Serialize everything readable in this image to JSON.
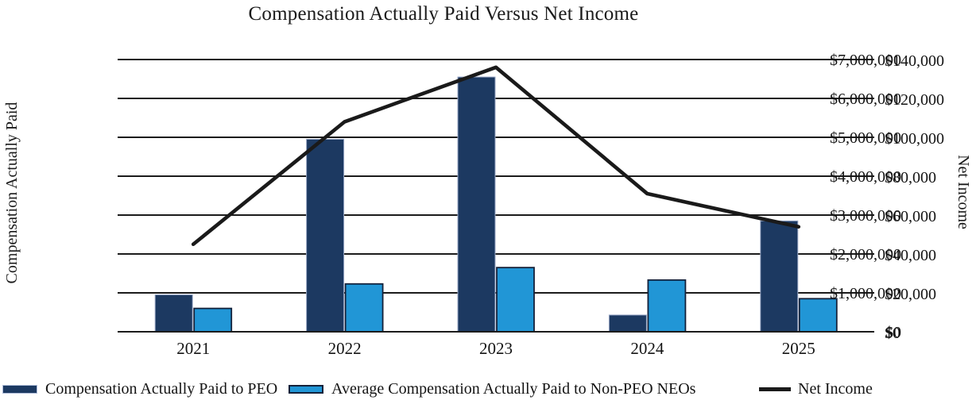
{
  "title": "Compensation Actually Paid Versus Net Income",
  "left_axis": {
    "title": "Compensation Actually Paid",
    "ticks": [
      "$7,000,000",
      "$6,000,000",
      "$5,000,000",
      "$4,000,000",
      "$3,000,000",
      "$2,000,000",
      "$1,000,000",
      "$0"
    ]
  },
  "right_axis": {
    "title": "Net Income",
    "ticks": [
      "$140,000",
      "$120,000",
      "$100,000",
      "$80,000",
      "$60,000",
      "$40,000",
      "$20,000",
      "$0"
    ]
  },
  "x_axis": {
    "categories": [
      "2021",
      "2022",
      "2023",
      "2024",
      "2025"
    ]
  },
  "legend": {
    "items": [
      {
        "label": "Compensation Actually Paid to PEO",
        "swatch": "bar",
        "color": "#1C3961"
      },
      {
        "label": "Average Compensation Actually Paid to Non-PEO NEOs",
        "swatch": "bar",
        "color": "#2196D6"
      },
      {
        "label": "Net Income",
        "swatch": "line",
        "color": "#1A1A1A"
      }
    ]
  },
  "colors": {
    "peo_bar": "#1C3961",
    "peo_bar_border": "#97A6C4",
    "nonpeo_bar": "#2196D6",
    "nonpeo_bar_border": "#14213A",
    "net_income_line": "#1A1A1A",
    "gridline": "#1C1C1C",
    "text": "#141414",
    "background": "#FFFFFF"
  },
  "chart_data": {
    "type": "bar+line combo",
    "title": "Compensation Actually Paid Versus Net Income",
    "categories": [
      "2021",
      "2022",
      "2023",
      "2024",
      "2025"
    ],
    "series": [
      {
        "name": "Compensation Actually Paid to PEO",
        "type": "bar",
        "axis": "left",
        "color": "#1C3961",
        "values": [
          950000,
          4950000,
          6550000,
          430000,
          2850000
        ]
      },
      {
        "name": "Average Compensation Actually Paid to Non-PEO NEOs",
        "type": "bar",
        "axis": "left",
        "color": "#2196D6",
        "values": [
          600000,
          1230000,
          1650000,
          1330000,
          850000
        ]
      },
      {
        "name": "Net Income",
        "type": "line",
        "axis": "right",
        "color": "#1A1A1A",
        "values": [
          45000,
          108000,
          136000,
          71000,
          54000
        ]
      }
    ],
    "left_ylabel": "Compensation Actually Paid",
    "right_ylabel": "Net Income",
    "left_ylim": [
      0,
      7000000
    ],
    "right_ylim": [
      0,
      140000
    ],
    "left_tick_step": 1000000,
    "right_tick_step": 20000,
    "grid": true,
    "legend_position": "bottom"
  }
}
